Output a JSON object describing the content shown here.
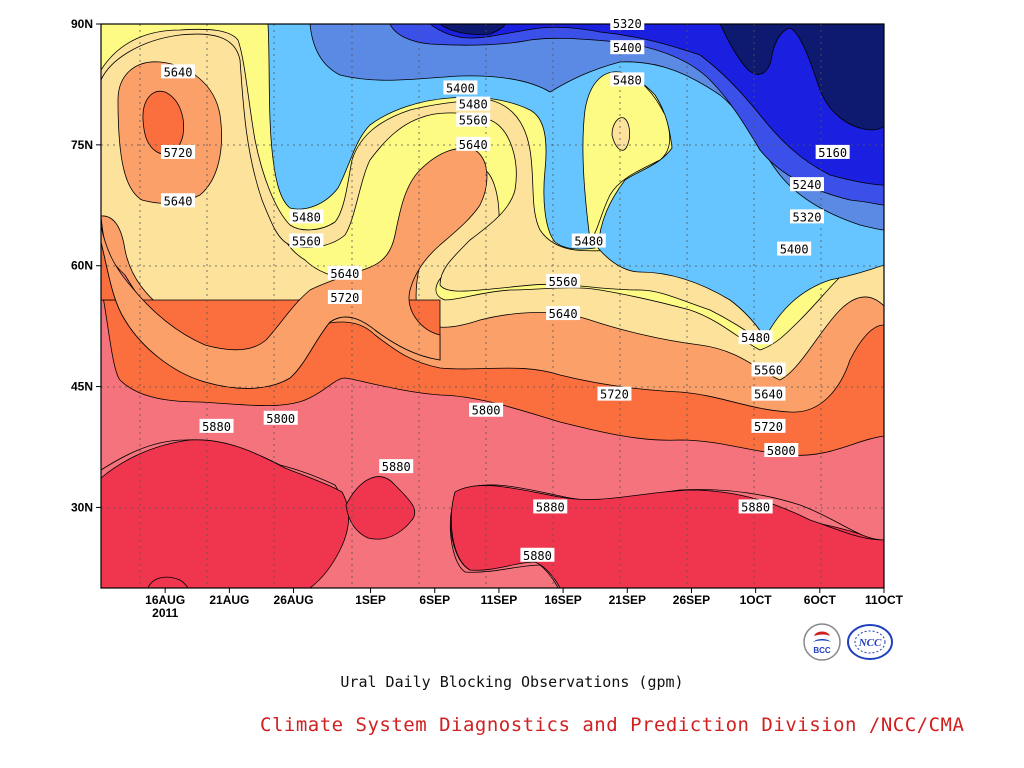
{
  "chart_data": {
    "type": "contour",
    "title": "Ural Daily Blocking Observations (gpm)",
    "xlabel": "",
    "ylabel": "",
    "x_ticks": [
      "16AUG\n2011",
      "21AUG",
      "26AUG",
      "1SEP",
      "6SEP",
      "11SEP",
      "16SEP",
      "21SEP",
      "26SEP",
      "1OCT",
      "6OCT",
      "11OCT"
    ],
    "y_ticks": [
      "30N",
      "45N",
      "60N",
      "75N",
      "90N"
    ],
    "ylim": [
      20,
      90
    ],
    "levels": [
      5160,
      5240,
      5320,
      5400,
      5480,
      5560,
      5640,
      5720,
      5800,
      5880
    ],
    "level_colors": {
      "below_5160": "#0d1a70",
      "5160": "#1b20e0",
      "5240": "#3a50e8",
      "5320": "#5b8ae4",
      "5400": "#66c4ff",
      "5480": "#fdfb84",
      "5560": "#fde29c",
      "5640": "#fca06a",
      "5720": "#fb6e3e",
      "5800": "#f5737d",
      "5880": "#f0364e"
    },
    "contour_labels": [
      {
        "text": "5640",
        "date": "17AUG",
        "lat": 84
      },
      {
        "text": "5720",
        "date": "17AUG",
        "lat": 74
      },
      {
        "text": "5640",
        "date": "17AUG",
        "lat": 68
      },
      {
        "text": "5480",
        "date": "27AUG",
        "lat": 66
      },
      {
        "text": "5560",
        "date": "27AUG",
        "lat": 63
      },
      {
        "text": "5640",
        "date": "30AUG",
        "lat": 59
      },
      {
        "text": "5720",
        "date": "30AUG",
        "lat": 56
      },
      {
        "text": "5400",
        "date": "8SEP",
        "lat": 82
      },
      {
        "text": "5480",
        "date": "9SEP",
        "lat": 80
      },
      {
        "text": "5560",
        "date": "9SEP",
        "lat": 78
      },
      {
        "text": "5640",
        "date": "9SEP",
        "lat": 75
      },
      {
        "text": "5320",
        "date": "21SEP",
        "lat": 90
      },
      {
        "text": "5400",
        "date": "21SEP",
        "lat": 87
      },
      {
        "text": "5480",
        "date": "21SEP",
        "lat": 83
      },
      {
        "text": "5480",
        "date": "18SEP",
        "lat": 63
      },
      {
        "text": "5560",
        "date": "16SEP",
        "lat": 58
      },
      {
        "text": "5640",
        "date": "16SEP",
        "lat": 54
      },
      {
        "text": "5720",
        "date": "20SEP",
        "lat": 44
      },
      {
        "text": "5800",
        "date": "25AUG",
        "lat": 41
      },
      {
        "text": "5880",
        "date": "20AUG",
        "lat": 40
      },
      {
        "text": "5800",
        "date": "10SEP",
        "lat": 42
      },
      {
        "text": "5880",
        "date": "3SEP",
        "lat": 35
      },
      {
        "text": "5880",
        "date": "15SEP",
        "lat": 30
      },
      {
        "text": "5880",
        "date": "14SEP",
        "lat": 24
      },
      {
        "text": "5880",
        "date": "1OCT",
        "lat": 30
      },
      {
        "text": "5160",
        "date": "7OCT",
        "lat": 74
      },
      {
        "text": "5240",
        "date": "5OCT",
        "lat": 70
      },
      {
        "text": "5320",
        "date": "5OCT",
        "lat": 66
      },
      {
        "text": "5400",
        "date": "4OCT",
        "lat": 62
      },
      {
        "text": "5480",
        "date": "1OCT",
        "lat": 51
      },
      {
        "text": "5560",
        "date": "2OCT",
        "lat": 47
      },
      {
        "text": "5640",
        "date": "2OCT",
        "lat": 44
      },
      {
        "text": "5720",
        "date": "2OCT",
        "lat": 40
      },
      {
        "text": "5800",
        "date": "3OCT",
        "lat": 37
      }
    ],
    "grid": true
  },
  "caption": "Ural Daily Blocking Observations (gpm)",
  "credit": "Climate System Diagnostics and Prediction Division /NCC/CMA",
  "logos": [
    {
      "name": "bcc-logo",
      "text": "BCC"
    },
    {
      "name": "ncc-logo",
      "text": "NCC"
    }
  ]
}
